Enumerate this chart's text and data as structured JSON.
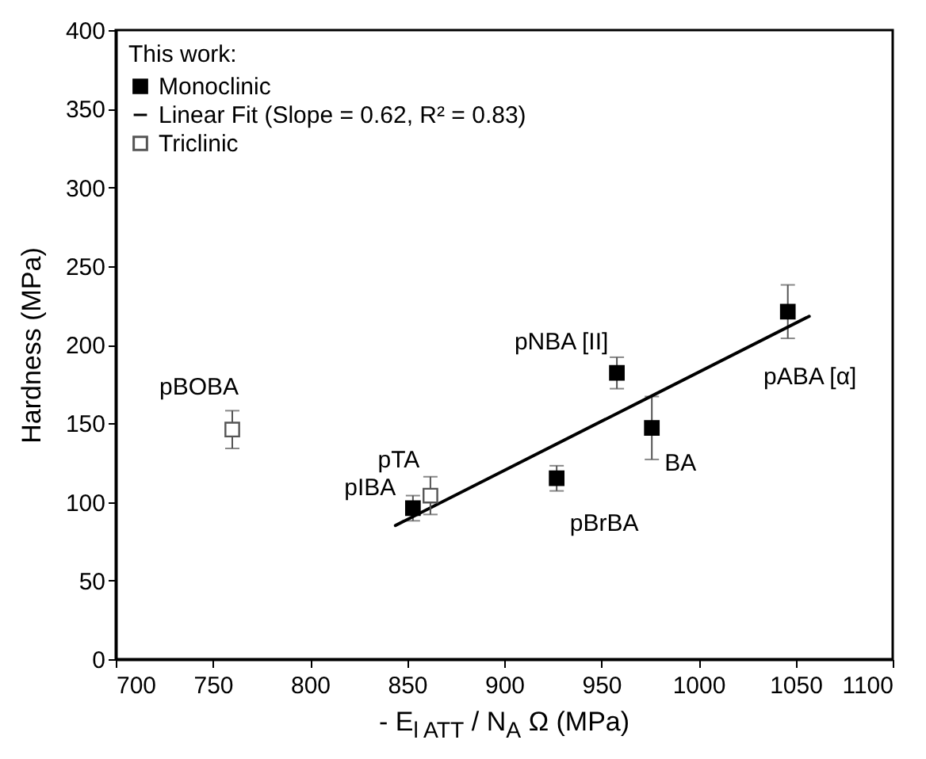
{
  "chart_data": {
    "type": "scatter",
    "xlabel": "- E$_{l ATT}$ / N$_{A}$ Ω (MPa)",
    "ylabel": "Hardness (MPa)",
    "legend_title": "This work:",
    "xlim": [
      700,
      1100
    ],
    "xticks": [
      700,
      750,
      800,
      850,
      900,
      950,
      1000,
      1050,
      1100
    ],
    "ylim": [
      0,
      400
    ],
    "yticks": [
      0,
      50,
      100,
      150,
      200,
      250,
      300,
      350,
      400
    ],
    "grid": false,
    "legend": "top left",
    "series": [
      {
        "name": "Monoclinic",
        "marker": "square",
        "color": "#000000",
        "x": [
          853,
          927,
          958,
          976,
          1046
        ],
        "values": [
          96,
          115,
          182,
          147,
          221
        ],
        "errors": [
          8,
          8,
          10,
          20,
          17
        ]
      },
      {
        "name": "Linear Fit (Slope = 0.62, R² = 0.83)",
        "type": "line",
        "marker": "none",
        "color": "#000000",
        "x": [
          844,
          1057
        ],
        "values": [
          85,
          218
        ]
      },
      {
        "name": "Triclinic",
        "marker": "square",
        "color": "#555555",
        "x": [
          760,
          862
        ],
        "values": [
          146,
          104
        ],
        "errors": [
          12,
          12
        ]
      }
    ],
    "annotations": [
      {
        "text": "pBOBA",
        "x": 760,
        "y": 146
      },
      {
        "text": "pTA",
        "x": 862,
        "y": 104
      },
      {
        "text": "pIBA",
        "x": 853,
        "y": 96
      },
      {
        "text": "pBrBA",
        "x": 927,
        "y": 115
      },
      {
        "text": "pNBA [II]",
        "x": 958,
        "y": 182
      },
      {
        "text": "BA",
        "x": 976,
        "y": 147
      },
      {
        "text": "pABA [α]",
        "x": 1046,
        "y": 221
      }
    ]
  }
}
